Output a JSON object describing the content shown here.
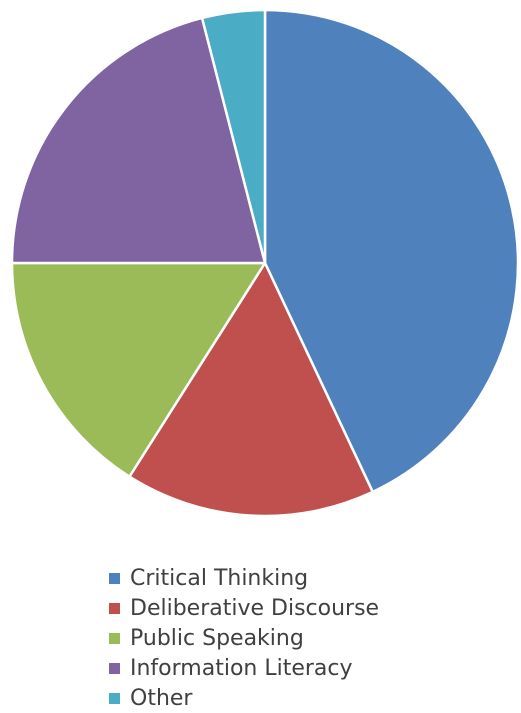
{
  "chart_data": {
    "type": "pie",
    "title": "",
    "categories": [
      "Critical Thinking",
      "Deliberative Discourse",
      "Public Speaking",
      "Information Literacy",
      "Other"
    ],
    "values": [
      43,
      16,
      16,
      21,
      4
    ],
    "colors": [
      "#4f81bd",
      "#c0504d",
      "#9bbb59",
      "#8064a2",
      "#4bacc6"
    ],
    "start_angle_deg": 0,
    "direction": "clockwise",
    "legend_position": "bottom",
    "data_labels": false
  }
}
